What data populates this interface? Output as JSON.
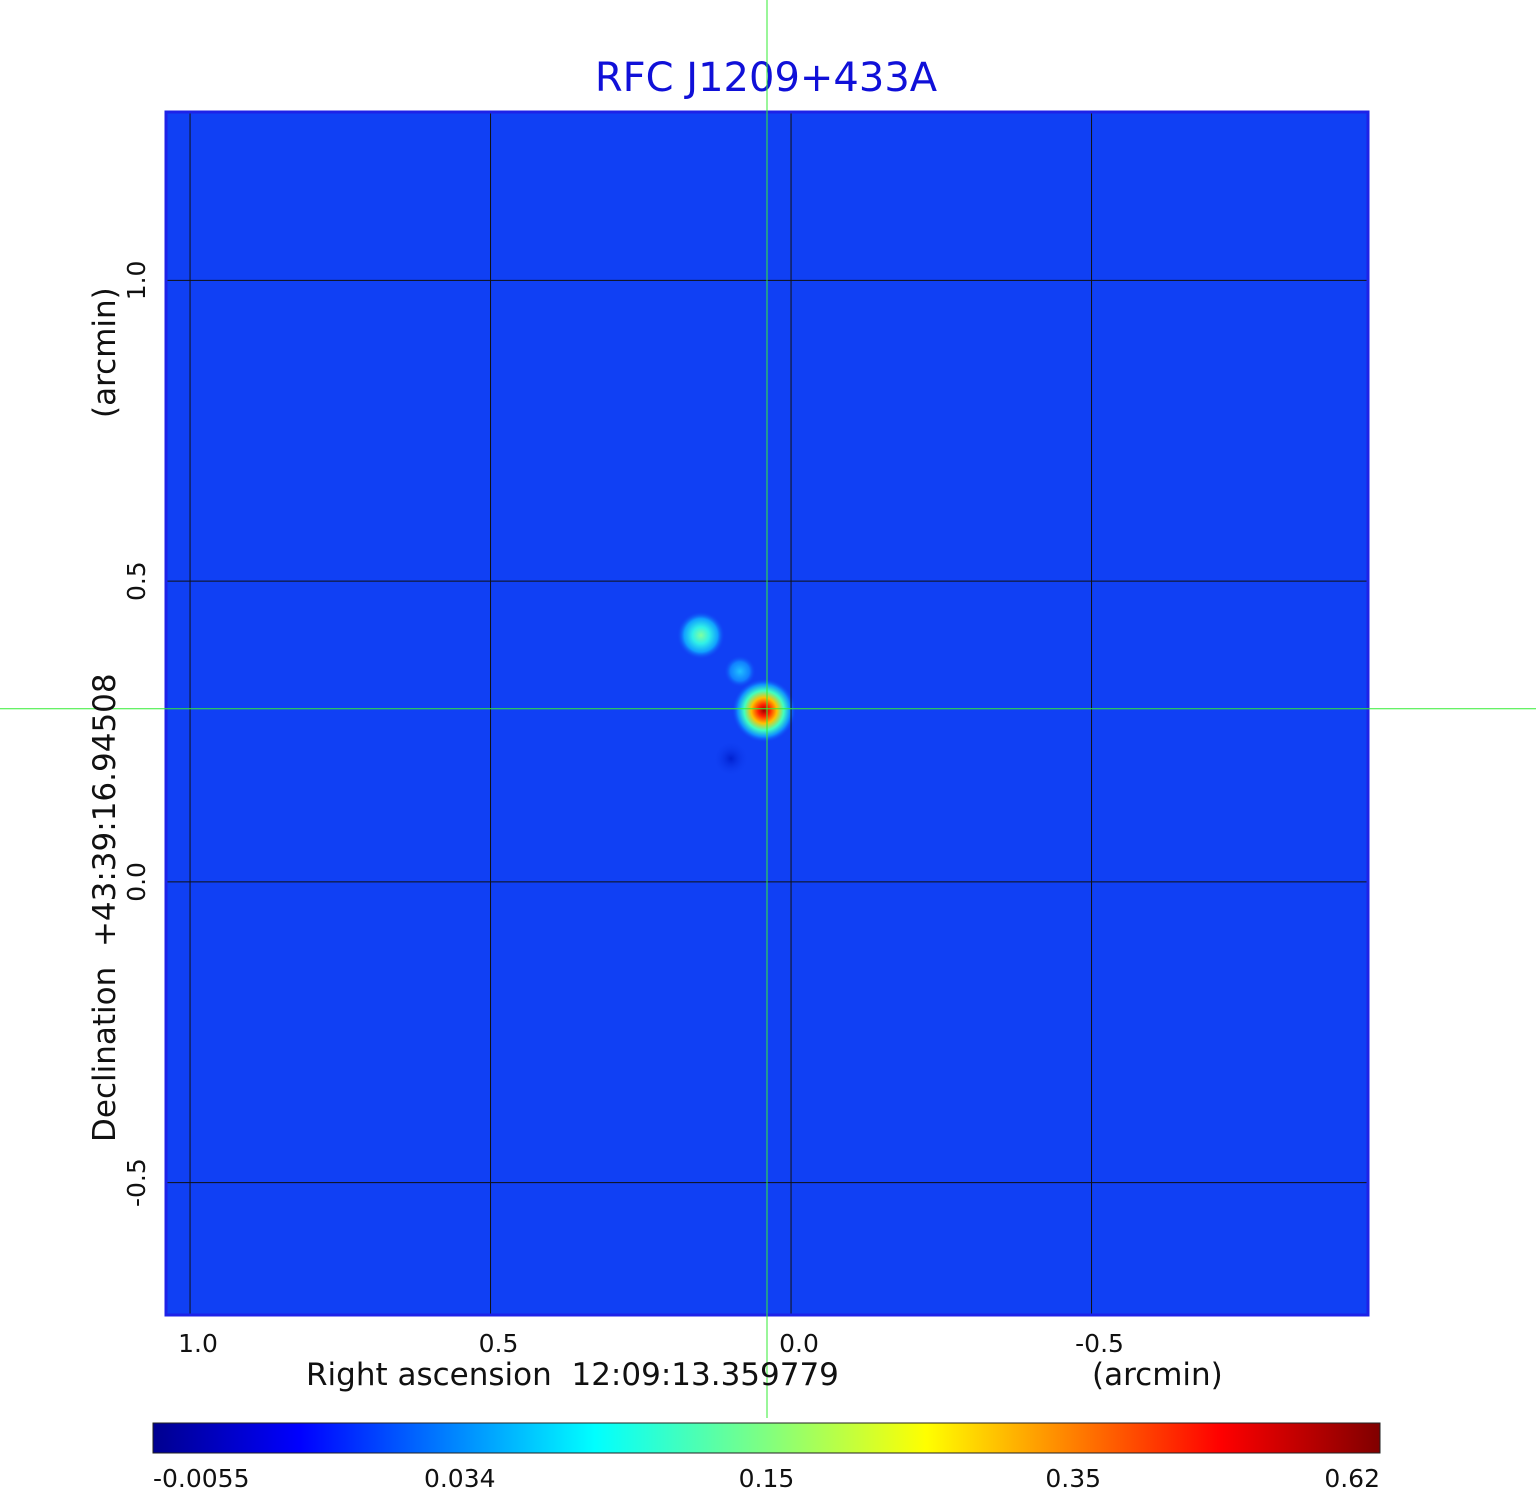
{
  "chart_data": {
    "type": "heatmap",
    "title": "RFC J1209+433A",
    "xlabel": "Right ascension  12:09:13.359779",
    "xunit": "(arcmin)",
    "ylabel": "Declination  +43:39:16.94508",
    "yunit": "(arcmin)",
    "x_ticks": [
      {
        "value": 1.0,
        "label": "1.0"
      },
      {
        "value": 0.5,
        "label": "0.5"
      },
      {
        "value": 0.0,
        "label": "0.0"
      },
      {
        "value": -0.5,
        "label": "-0.5"
      }
    ],
    "y_ticks": [
      {
        "value": 1.0,
        "label": "1.0"
      },
      {
        "value": 0.5,
        "label": "0.5"
      },
      {
        "value": 0.0,
        "label": "0.0"
      },
      {
        "value": -0.5,
        "label": "-0.5"
      }
    ],
    "xlim": [
      1.04,
      -0.96
    ],
    "ylim": [
      -0.72,
      1.28
    ],
    "grid": true,
    "crosshair": {
      "x": 0.04,
      "y": 0.288
    },
    "sources": [
      {
        "x": 0.045,
        "y": 0.285,
        "peak": 0.62
      },
      {
        "x": 0.15,
        "y": 0.41,
        "peak": 0.1
      },
      {
        "x": 0.085,
        "y": 0.35,
        "peak": 0.05
      }
    ],
    "colorbar": {
      "colormap": "jet",
      "ticks": [
        "-0.0055",
        "0.034",
        "0.15",
        "0.35",
        "0.62"
      ]
    },
    "colors": {
      "background": "#1040f4",
      "title": "#1010d8",
      "crosshair": "#33ee33",
      "frame": "#1d22e8",
      "grid": "#111111"
    }
  }
}
